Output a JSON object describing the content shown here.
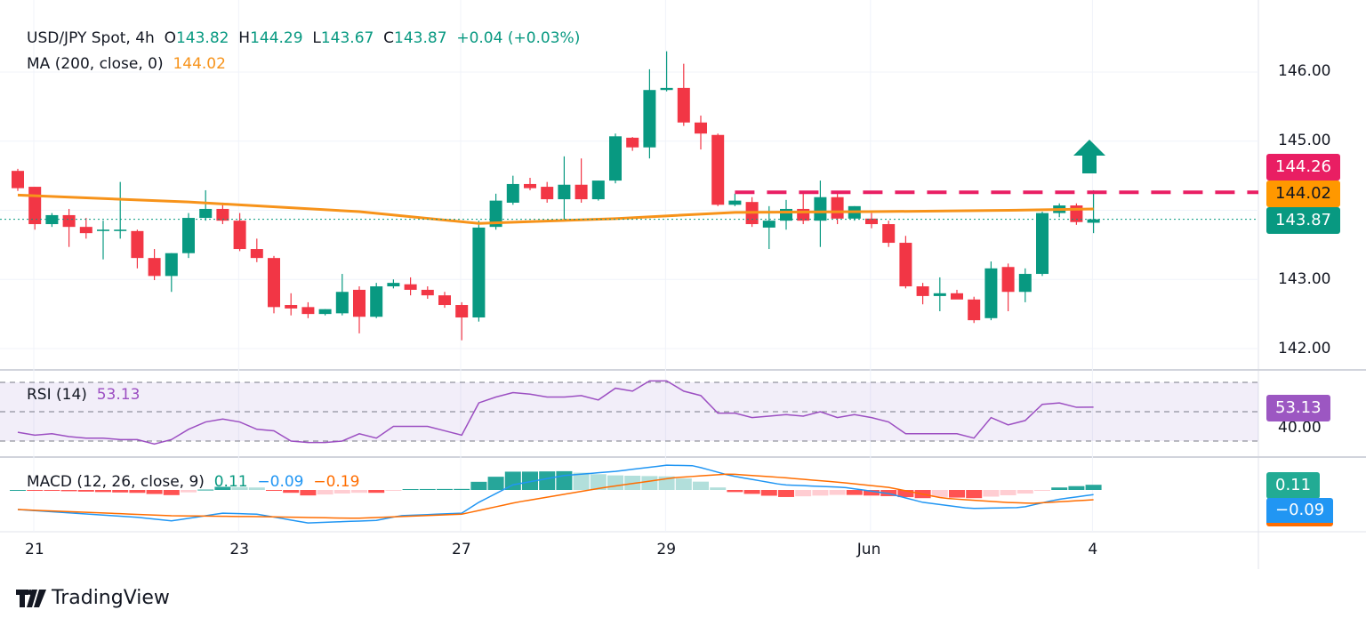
{
  "legend": {
    "symbol": "USD/JPY Spot, 4h",
    "o_label": "O",
    "o": "143.82",
    "h_label": "H",
    "h": "144.29",
    "l_label": "L",
    "l": "143.67",
    "c_label": "C",
    "c": "143.87",
    "change": "+0.04 (+0.03%)",
    "ma_label": "MA (200, close, 0)",
    "ma_value": "144.02",
    "rsi_label": "RSI (14)",
    "rsi_value": "53.13",
    "macd_label": "MACD (12, 26, close, 9)",
    "macd_hist": "0.11",
    "macd_line": "−0.09",
    "macd_signal": "−0.19"
  },
  "price_tags": {
    "resistance": "144.26",
    "ma": "144.02",
    "last": "143.87",
    "rsi": "53.13",
    "macd_hist": "0.11",
    "macd_line": "−0.09"
  },
  "colors": {
    "up": "#089981",
    "down": "#f23645",
    "ma": "#f7931a",
    "resistance": "#e91e63",
    "rsi": "#9c4fc2",
    "macd": "#2196f3",
    "signal": "#ff6d00"
  },
  "brand": "TradingView",
  "chart_data": {
    "type": "candlestick",
    "title": "USD/JPY Spot, 4h",
    "price_ticks": [
      "146.00",
      "145.00",
      "143.00",
      "142.00"
    ],
    "price_tick_values": [
      146,
      145,
      143,
      142
    ],
    "rsi_tick": "40.00",
    "x_ticks": [
      {
        "label": "21",
        "index": 1
      },
      {
        "label": "23",
        "index": 13
      },
      {
        "label": "27",
        "index": 26
      },
      {
        "label": "29",
        "index": 38
      },
      {
        "label": "Jun",
        "index": 50
      },
      {
        "label": "4",
        "index": 63
      }
    ],
    "ylim": [
      141.8,
      146.3
    ],
    "resistance_level": 144.26,
    "ohlc": [
      [
        144.57,
        144.6,
        144.28,
        144.32
      ],
      [
        144.34,
        144.34,
        143.72,
        143.8
      ],
      [
        143.8,
        143.96,
        143.76,
        143.93
      ],
      [
        143.93,
        144.02,
        143.47,
        143.76
      ],
      [
        143.76,
        143.89,
        143.59,
        143.67
      ],
      [
        143.7,
        143.85,
        143.29,
        143.72
      ],
      [
        143.7,
        144.41,
        143.59,
        143.72
      ],
      [
        143.7,
        143.72,
        143.16,
        143.31
      ],
      [
        143.31,
        143.44,
        142.99,
        143.05
      ],
      [
        143.05,
        143.38,
        142.82,
        143.38
      ],
      [
        143.38,
        143.96,
        143.31,
        143.89
      ],
      [
        143.89,
        144.29,
        143.85,
        144.02
      ],
      [
        144.02,
        144.11,
        143.8,
        143.85
      ],
      [
        143.85,
        143.96,
        143.41,
        143.44
      ],
      [
        143.44,
        143.59,
        143.25,
        143.31
      ],
      [
        143.31,
        143.34,
        142.51,
        142.6
      ],
      [
        142.63,
        142.8,
        142.48,
        142.58
      ],
      [
        142.6,
        142.67,
        142.44,
        142.5
      ],
      [
        142.5,
        142.57,
        142.48,
        142.57
      ],
      [
        142.51,
        143.08,
        142.48,
        142.82
      ],
      [
        142.85,
        142.9,
        142.22,
        142.46
      ],
      [
        142.46,
        142.95,
        142.44,
        142.9
      ],
      [
        142.9,
        143.0,
        142.87,
        142.95
      ],
      [
        142.93,
        143.03,
        142.77,
        142.85
      ],
      [
        142.85,
        142.9,
        142.72,
        142.77
      ],
      [
        142.77,
        142.82,
        142.59,
        142.63
      ],
      [
        142.63,
        142.67,
        142.12,
        142.45
      ],
      [
        142.45,
        143.85,
        142.39,
        143.75
      ],
      [
        143.76,
        144.24,
        143.72,
        144.14
      ],
      [
        144.11,
        144.5,
        144.08,
        144.38
      ],
      [
        144.38,
        144.47,
        144.29,
        144.32
      ],
      [
        144.34,
        144.41,
        144.11,
        144.16
      ],
      [
        144.16,
        144.78,
        143.86,
        144.37
      ],
      [
        144.37,
        144.75,
        144.11,
        144.16
      ],
      [
        144.16,
        144.43,
        144.14,
        144.43
      ],
      [
        144.43,
        145.11,
        144.39,
        145.07
      ],
      [
        145.05,
        145.06,
        144.86,
        144.91
      ],
      [
        144.91,
        146.04,
        144.75,
        145.74
      ],
      [
        145.74,
        146.3,
        145.72,
        145.77
      ],
      [
        145.77,
        146.12,
        145.22,
        145.27
      ],
      [
        145.27,
        145.37,
        144.88,
        145.11
      ],
      [
        145.09,
        145.11,
        144.06,
        144.08
      ],
      [
        144.08,
        144.24,
        144.06,
        144.14
      ],
      [
        144.12,
        144.19,
        143.76,
        143.8
      ],
      [
        143.75,
        144.06,
        143.44,
        143.85
      ],
      [
        143.85,
        144.15,
        143.72,
        144.02
      ],
      [
        144.02,
        144.24,
        143.8,
        143.85
      ],
      [
        143.85,
        144.43,
        143.47,
        144.19
      ],
      [
        144.19,
        144.24,
        143.8,
        143.88
      ],
      [
        143.88,
        144.06,
        143.85,
        144.06
      ],
      [
        143.88,
        143.96,
        143.74,
        143.8
      ],
      [
        143.8,
        143.85,
        143.47,
        143.53
      ],
      [
        143.53,
        143.63,
        142.87,
        142.9
      ],
      [
        142.9,
        142.95,
        142.64,
        142.76
      ],
      [
        142.76,
        143.03,
        142.54,
        142.8
      ],
      [
        142.8,
        142.85,
        142.72,
        142.71
      ],
      [
        142.71,
        142.75,
        142.37,
        142.41
      ],
      [
        142.44,
        143.26,
        142.41,
        143.16
      ],
      [
        143.18,
        143.23,
        142.54,
        142.82
      ],
      [
        142.82,
        143.16,
        142.67,
        143.08
      ],
      [
        143.08,
        143.98,
        143.05,
        143.96
      ],
      [
        143.96,
        144.1,
        143.9,
        144.07
      ],
      [
        144.07,
        144.1,
        143.79,
        143.83
      ],
      [
        143.82,
        144.29,
        143.67,
        143.87
      ]
    ],
    "ma200": [
      [
        0,
        144.22
      ],
      [
        10,
        144.12
      ],
      [
        20,
        143.98
      ],
      [
        27,
        143.81
      ],
      [
        35,
        143.88
      ],
      [
        42,
        143.97
      ],
      [
        50,
        143.98
      ],
      [
        58,
        144.0
      ],
      [
        63,
        144.02
      ]
    ],
    "rsi": [
      36,
      34,
      35,
      33,
      32,
      32,
      31,
      31,
      28,
      31,
      38,
      43,
      45,
      43,
      38,
      37,
      30,
      29,
      29,
      30,
      35,
      32,
      40,
      40,
      40,
      37,
      34,
      56,
      60,
      63,
      62,
      60,
      60,
      61,
      58,
      66,
      64,
      71,
      71,
      64,
      61,
      49,
      49,
      46,
      47,
      48,
      47,
      50,
      46,
      48,
      46,
      43,
      35,
      35,
      35,
      35,
      32,
      46,
      41,
      44,
      55,
      56,
      53,
      53.13
    ],
    "rsi_levels": [
      70,
      50,
      30
    ],
    "macd": [
      [
        0,
        -0.38
      ],
      [
        7,
        -0.53
      ],
      [
        9,
        -0.6
      ],
      [
        12,
        -0.45
      ],
      [
        14,
        -0.47
      ],
      [
        17,
        -0.64
      ],
      [
        21,
        -0.59
      ],
      [
        22.4,
        -0.5
      ],
      [
        26,
        -0.45
      ],
      [
        27,
        -0.24
      ],
      [
        29,
        0.1
      ],
      [
        32,
        0.28
      ],
      [
        35,
        0.36
      ],
      [
        38,
        0.48
      ],
      [
        39.6,
        0.47
      ],
      [
        41.7,
        0.28
      ],
      [
        44.8,
        0.1
      ],
      [
        48.4,
        0.05
      ],
      [
        51,
        -0.07
      ],
      [
        53,
        -0.24
      ],
      [
        55.8,
        -0.36
      ],
      [
        58.8,
        -0.34
      ],
      [
        60.8,
        -0.19
      ],
      [
        63,
        -0.09
      ]
    ],
    "signal": [
      [
        0,
        -0.38
      ],
      [
        9,
        -0.5
      ],
      [
        14.6,
        -0.52
      ],
      [
        19.8,
        -0.55
      ],
      [
        26,
        -0.47
      ],
      [
        29.2,
        -0.24
      ],
      [
        34.4,
        0.05
      ],
      [
        38.5,
        0.24
      ],
      [
        41.7,
        0.31
      ],
      [
        44.8,
        0.24
      ],
      [
        48.4,
        0.14
      ],
      [
        51,
        0.05
      ],
      [
        54.2,
        -0.16
      ],
      [
        57.8,
        -0.24
      ],
      [
        59.4,
        -0.26
      ],
      [
        63,
        -0.19
      ]
    ]
  }
}
